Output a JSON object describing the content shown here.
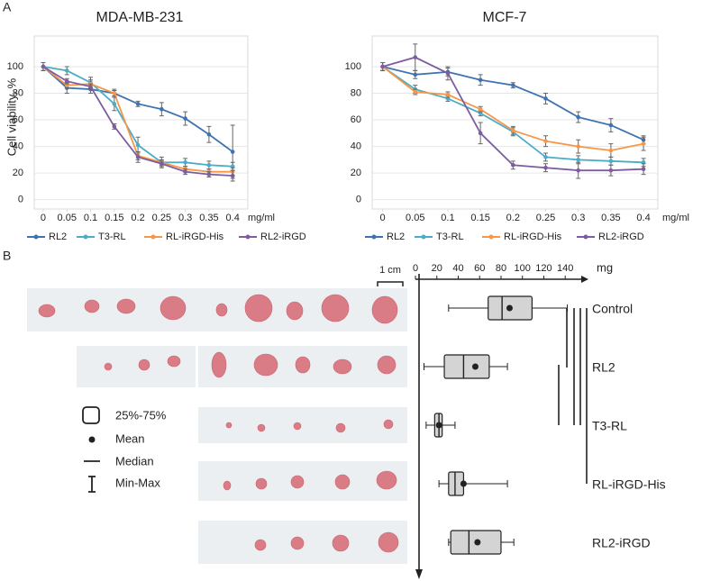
{
  "panel_labels": [
    "A",
    "B"
  ],
  "scale_bar": "1 cm",
  "box_legend": [
    "25%-75%",
    "Mean",
    "Median",
    "Min-Max"
  ],
  "chart_data": [
    {
      "type": "line",
      "title": "MDA-MB-231",
      "ylabel": "Cell viability, %",
      "xunit": "mg/ml",
      "x": [
        0,
        0.05,
        0.1,
        0.15,
        0.2,
        0.25,
        0.3,
        0.35,
        0.4
      ],
      "xlim": [
        -0.019,
        0.432
      ],
      "xticks": [
        0,
        0.05,
        0.1,
        0.15,
        0.2,
        0.25,
        0.3,
        0.35,
        0.4
      ],
      "ylim": [
        -7,
        123
      ],
      "yticks": [
        0,
        20,
        40,
        60,
        80,
        100
      ],
      "grid": true,
      "series": [
        {
          "name": "RL2",
          "color": "#3f73b0",
          "values": [
            100,
            84,
            83,
            80,
            72,
            68,
            61,
            49,
            36
          ],
          "errors": [
            3,
            4,
            3,
            2,
            2,
            5,
            5,
            6,
            20
          ]
        },
        {
          "name": "T3-RL",
          "color": "#4bacc6",
          "values": [
            100,
            97,
            88,
            72,
            41,
            28,
            28,
            26,
            25
          ],
          "errors": [
            3,
            3,
            4,
            5,
            6,
            4,
            3,
            3,
            3
          ]
        },
        {
          "name": "RL-iRGD-His",
          "color": "#f79646",
          "values": [
            100,
            86,
            87,
            80,
            33,
            28,
            23,
            21,
            21
          ],
          "errors": [
            3,
            2,
            3,
            3,
            3,
            2,
            2,
            2,
            3
          ]
        },
        {
          "name": "RL2-iRGD",
          "color": "#7e5ca0",
          "values": [
            100,
            89,
            85,
            55,
            32,
            27,
            21,
            19,
            18
          ],
          "errors": [
            3,
            2,
            2,
            2,
            4,
            2,
            2,
            2,
            4
          ]
        }
      ]
    },
    {
      "type": "line",
      "title": "MCF-7",
      "xunit": "mg/ml",
      "x": [
        0,
        0.05,
        0.1,
        0.15,
        0.2,
        0.25,
        0.3,
        0.35,
        0.4
      ],
      "xlim": [
        -0.016,
        0.422
      ],
      "xticks": [
        0,
        0.05,
        0.1,
        0.15,
        0.2,
        0.25,
        0.3,
        0.35,
        0.4
      ],
      "ylim": [
        -7,
        123
      ],
      "yticks": [
        0,
        20,
        40,
        60,
        80,
        100
      ],
      "grid": true,
      "series": [
        {
          "name": "RL2",
          "color": "#3f73b0",
          "values": [
            100,
            94,
            96,
            90,
            86,
            76,
            62,
            56,
            45
          ],
          "errors": [
            3,
            3,
            3,
            4,
            2,
            4,
            4,
            5,
            3
          ]
        },
        {
          "name": "T3-RL",
          "color": "#4bacc6",
          "values": [
            100,
            83,
            76,
            65,
            51,
            32,
            30,
            29,
            28
          ],
          "errors": [
            3,
            3,
            2,
            2,
            3,
            3,
            3,
            3,
            3
          ]
        },
        {
          "name": "RL-iRGD-His",
          "color": "#f79646",
          "values": [
            100,
            81,
            79,
            68,
            52,
            44,
            40,
            37,
            42
          ],
          "errors": [
            3,
            2,
            2,
            2,
            3,
            4,
            5,
            5,
            5
          ]
        },
        {
          "name": "RL2-iRGD",
          "color": "#7e5ca0",
          "values": [
            100,
            107,
            95,
            50,
            26,
            24,
            22,
            22,
            23
          ],
          "errors": [
            3,
            10,
            5,
            8,
            3,
            3,
            6,
            4,
            4
          ]
        }
      ]
    },
    {
      "type": "box",
      "xunit": "mg",
      "xlim": [
        0,
        155
      ],
      "xticks": [
        0,
        20,
        40,
        60,
        80,
        100,
        120,
        140
      ],
      "categories": [
        "Control",
        "RL2",
        "T3-RL",
        "RL-iRGD-His",
        "RL2-iRGD"
      ],
      "min": [
        31,
        8,
        10,
        22,
        31
      ],
      "q1": [
        68,
        27,
        18,
        31,
        33
      ],
      "median": [
        81,
        45,
        22,
        37,
        50
      ],
      "mean": [
        88,
        56,
        22,
        45,
        58
      ],
      "q3": [
        109,
        69,
        25,
        45,
        80
      ],
      "max": [
        142,
        86,
        37,
        86,
        92
      ]
    }
  ]
}
